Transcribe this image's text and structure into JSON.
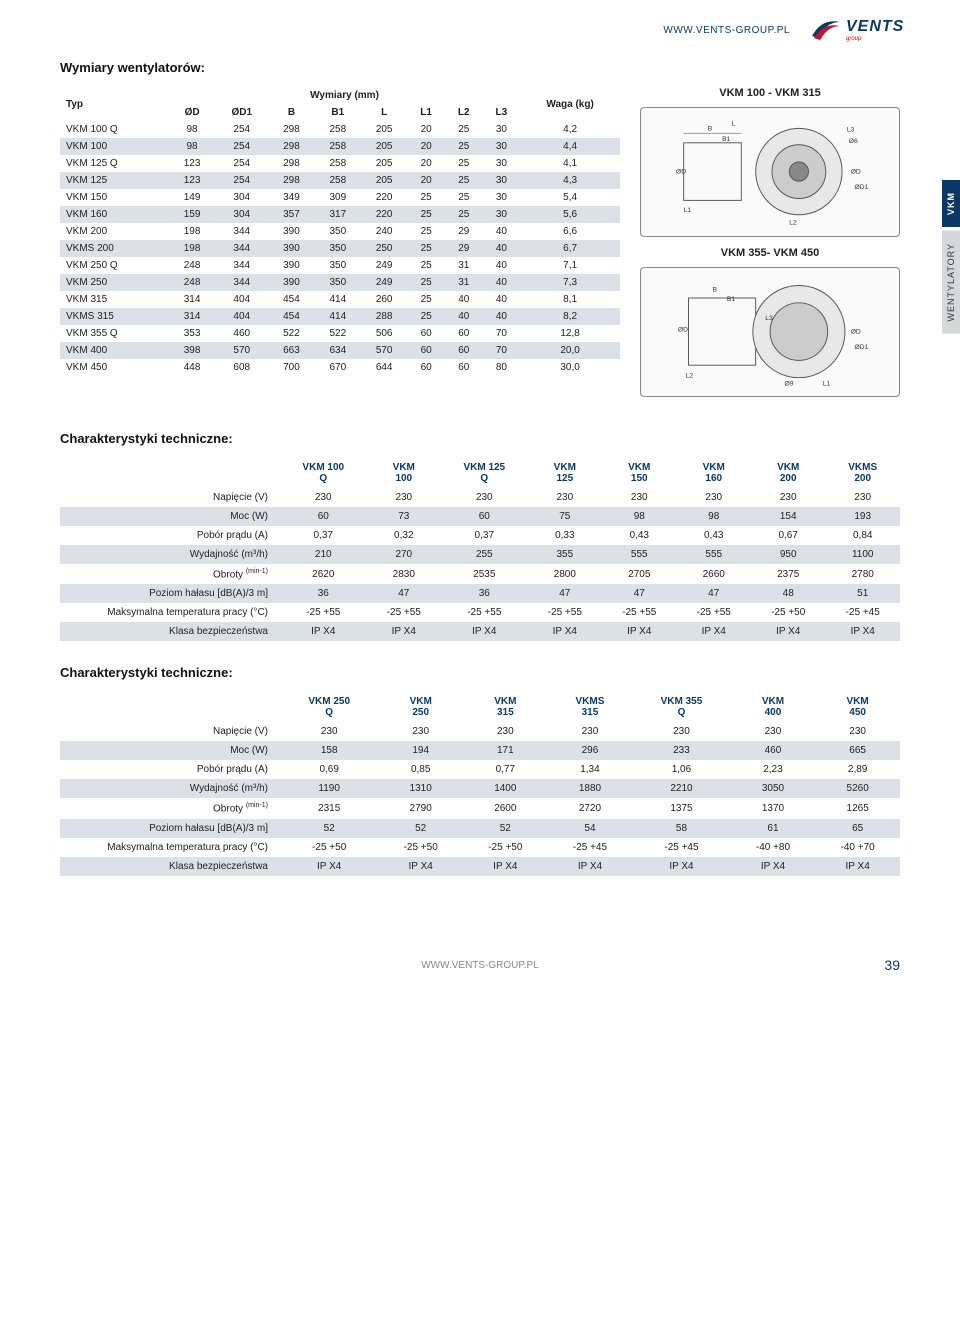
{
  "header": {
    "url": "WWW.VENTS-GROUP.PL",
    "logo_text": "VENTS",
    "logo_sub": "group"
  },
  "sidetabs": {
    "tab1": "VKM",
    "tab2": "WENTYLATORY"
  },
  "sections": {
    "dimensions_title": "Wymiary wentylatorów:",
    "specs_title": "Charakterystyki techniczne:"
  },
  "dim_table": {
    "type_header": "Typ",
    "dim_group_header": "Wymiary (mm)",
    "weight_header": "Waga (kg)",
    "columns": [
      "ØD",
      "ØD1",
      "B",
      "B1",
      "L",
      "L1",
      "L2",
      "L3"
    ],
    "rows": [
      {
        "typ": "VKM 100 Q",
        "v": [
          "98",
          "254",
          "298",
          "258",
          "205",
          "20",
          "25",
          "30",
          "4,2"
        ]
      },
      {
        "typ": "VKM 100",
        "v": [
          "98",
          "254",
          "298",
          "258",
          "205",
          "20",
          "25",
          "30",
          "4,4"
        ]
      },
      {
        "typ": "VKM 125 Q",
        "v": [
          "123",
          "254",
          "298",
          "258",
          "205",
          "20",
          "25",
          "30",
          "4,1"
        ]
      },
      {
        "typ": "VKM 125",
        "v": [
          "123",
          "254",
          "298",
          "258",
          "205",
          "20",
          "25",
          "30",
          "4,3"
        ]
      },
      {
        "typ": "VKM 150",
        "v": [
          "149",
          "304",
          "349",
          "309",
          "220",
          "25",
          "25",
          "30",
          "5,4"
        ]
      },
      {
        "typ": "VKM 160",
        "v": [
          "159",
          "304",
          "357",
          "317",
          "220",
          "25",
          "25",
          "30",
          "5,6"
        ]
      },
      {
        "typ": "VKM 200",
        "v": [
          "198",
          "344",
          "390",
          "350",
          "240",
          "25",
          "29",
          "40",
          "6,6"
        ]
      },
      {
        "typ": "VKMS 200",
        "v": [
          "198",
          "344",
          "390",
          "350",
          "250",
          "25",
          "29",
          "40",
          "6,7"
        ]
      },
      {
        "typ": "VKM 250 Q",
        "v": [
          "248",
          "344",
          "390",
          "350",
          "249",
          "25",
          "31",
          "40",
          "7,1"
        ]
      },
      {
        "typ": "VKM 250",
        "v": [
          "248",
          "344",
          "390",
          "350",
          "249",
          "25",
          "31",
          "40",
          "7,3"
        ]
      },
      {
        "typ": "VKM 315",
        "v": [
          "314",
          "404",
          "454",
          "414",
          "260",
          "25",
          "40",
          "40",
          "8,1"
        ]
      },
      {
        "typ": "VKMS 315",
        "v": [
          "314",
          "404",
          "454",
          "414",
          "288",
          "25",
          "40",
          "40",
          "8,2"
        ]
      },
      {
        "typ": "VKM 355 Q",
        "v": [
          "353",
          "460",
          "522",
          "522",
          "506",
          "60",
          "60",
          "70",
          "12,8"
        ]
      },
      {
        "typ": "VKM 400",
        "v": [
          "398",
          "570",
          "663",
          "634",
          "570",
          "60",
          "60",
          "70",
          "20,0"
        ]
      },
      {
        "typ": "VKM 450",
        "v": [
          "448",
          "608",
          "700",
          "670",
          "644",
          "60",
          "60",
          "80",
          "30,0"
        ]
      }
    ]
  },
  "diagrams": {
    "title1": "VKM 100 - VKM 315",
    "title2": "VKM 355- VKM 450",
    "labels": [
      "B",
      "B1",
      "L",
      "L1",
      "L2",
      "L3",
      "Ø6",
      "ØD",
      "ØD1",
      "Ø9"
    ]
  },
  "spec_params": {
    "voltage": "Napięcie (V)",
    "power": "Moc (W)",
    "current": "Pobór prądu (A)",
    "airflow": "Wydajność (m³/h)",
    "rpm": "Obroty",
    "rpm_unit": "(min-1)",
    "noise": "Poziom hałasu [dB(A)/3 m]",
    "temp": "Maksymalna temperatura pracy (°C)",
    "ip": "Klasa bezpieczeństwa"
  },
  "spec1": {
    "models": [
      "VKM 100 Q",
      "VKM 100",
      "VKM 125 Q",
      "VKM 125",
      "VKM 150",
      "VKM 160",
      "VKM 200",
      "VKMS 200"
    ],
    "voltage": [
      "230",
      "230",
      "230",
      "230",
      "230",
      "230",
      "230",
      "230"
    ],
    "power": [
      "60",
      "73",
      "60",
      "75",
      "98",
      "98",
      "154",
      "193"
    ],
    "current": [
      "0,37",
      "0,32",
      "0,37",
      "0,33",
      "0,43",
      "0,43",
      "0,67",
      "0,84"
    ],
    "airflow": [
      "210",
      "270",
      "255",
      "355",
      "555",
      "555",
      "950",
      "1100"
    ],
    "rpm": [
      "2620",
      "2830",
      "2535",
      "2800",
      "2705",
      "2660",
      "2375",
      "2780"
    ],
    "noise": [
      "36",
      "47",
      "36",
      "47",
      "47",
      "47",
      "48",
      "51"
    ],
    "temp": [
      "-25 +55",
      "-25 +55",
      "-25 +55",
      "-25 +55",
      "-25 +55",
      "-25 +55",
      "-25 +50",
      "-25 +45"
    ],
    "ip": [
      "IP X4",
      "IP X4",
      "IP X4",
      "IP X4",
      "IP X4",
      "IP X4",
      "IP X4",
      "IP X4"
    ]
  },
  "spec2": {
    "models": [
      "VKM 250 Q",
      "VKM 250",
      "VKM 315",
      "VKMS 315",
      "VKM 355 Q",
      "VKM 400",
      "VKM 450"
    ],
    "voltage": [
      "230",
      "230",
      "230",
      "230",
      "230",
      "230",
      "230"
    ],
    "power": [
      "158",
      "194",
      "171",
      "296",
      "233",
      "460",
      "665"
    ],
    "current": [
      "0,69",
      "0,85",
      "0,77",
      "1,34",
      "1,06",
      "2,23",
      "2,89"
    ],
    "airflow": [
      "1190",
      "1310",
      "1400",
      "1880",
      "2210",
      "3050",
      "5260"
    ],
    "rpm": [
      "2315",
      "2790",
      "2600",
      "2720",
      "1375",
      "1370",
      "1265"
    ],
    "noise": [
      "52",
      "52",
      "52",
      "54",
      "58",
      "61",
      "65"
    ],
    "temp": [
      "-25 +50",
      "-25 +50",
      "-25 +50",
      "-25 +45",
      "-25 +45",
      "-40 +80",
      "-40 +70"
    ],
    "ip": [
      "IP X4",
      "IP X4",
      "IP X4",
      "IP X4",
      "IP X4",
      "IP X4",
      "IP X4"
    ]
  },
  "footer": {
    "url": "WWW.VENTS-GROUP.PL",
    "page": "39"
  },
  "colors": {
    "brand": "#0a3a63",
    "stripe": "#dbe1e6"
  }
}
